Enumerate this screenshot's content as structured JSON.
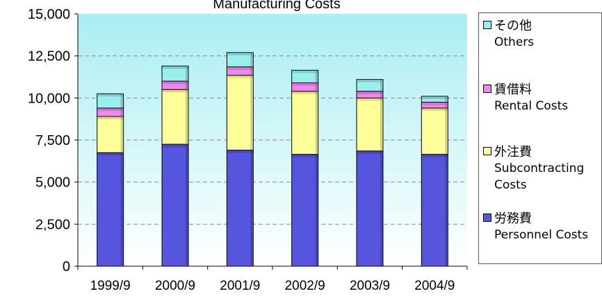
{
  "chart_data": {
    "type": "bar",
    "stacked": true,
    "title": "Manufacturing Costs",
    "categories": [
      "1999/9",
      "2000/9",
      "2001/9",
      "2002/9",
      "2003/9",
      "2004/9"
    ],
    "ylim": [
      0,
      15000
    ],
    "yticks": [
      "0",
      "2,500",
      "5,000",
      "7,500",
      "10,000",
      "12,500",
      "15,000"
    ],
    "grid": true,
    "legend_position": "right",
    "series": [
      {
        "name": "労務費 Personnel Costs",
        "jp": "労務費",
        "en": [
          "Personnel Costs"
        ],
        "color": "#5555dd",
        "values": [
          6750,
          7250,
          6900,
          6650,
          6850,
          6650
        ]
      },
      {
        "name": "外注費 Subcontracting Costs",
        "jp": "外注費",
        "en": [
          "Subcontracting",
          "Costs"
        ],
        "color": "#ffff99",
        "values": [
          2150,
          3250,
          4450,
          3750,
          3150,
          2750
        ]
      },
      {
        "name": "賃借料 Rental Costs",
        "jp": "賃借料",
        "en": [
          "Rental Costs"
        ],
        "color": "#ee88ee",
        "values": [
          500,
          500,
          500,
          500,
          400,
          350
        ]
      },
      {
        "name": "その他 Others",
        "jp": "その他",
        "en": [
          "Others"
        ],
        "color": "#99eeee",
        "values": [
          850,
          900,
          850,
          750,
          700,
          350
        ]
      }
    ]
  }
}
